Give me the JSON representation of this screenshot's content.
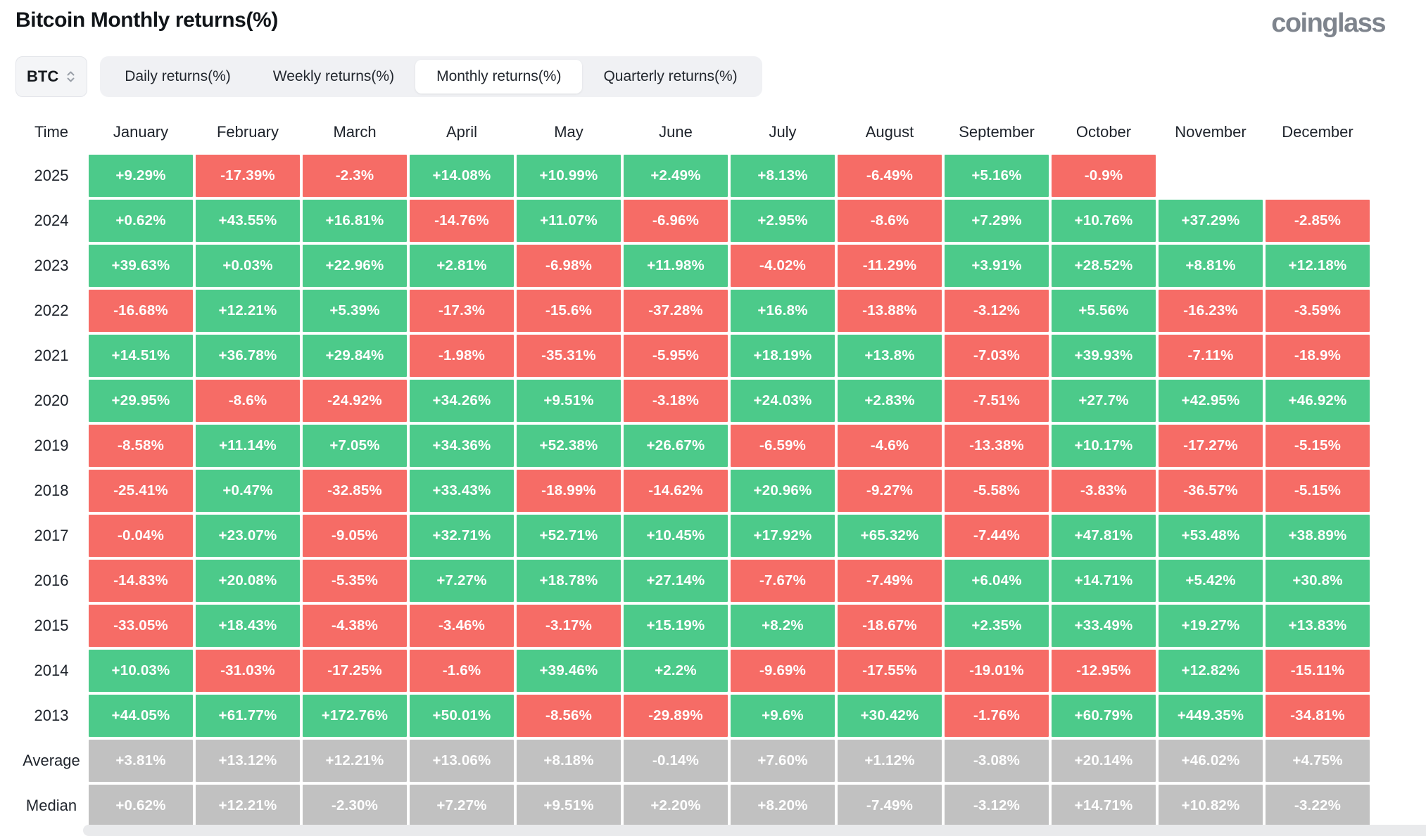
{
  "header": {
    "title": "Bitcoin Monthly returns(%)",
    "logo": "coinglass"
  },
  "toolbar": {
    "coin": "BTC",
    "tabs": [
      "Daily returns(%)",
      "Weekly returns(%)",
      "Monthly returns(%)",
      "Quarterly returns(%)"
    ],
    "active_tab": "Monthly returns(%)"
  },
  "colors": {
    "positive": "#4CCA8A",
    "negative": "#F66C66",
    "summary": "#C1C1C1"
  },
  "table": {
    "columns": [
      "Time",
      "January",
      "February",
      "March",
      "April",
      "May",
      "June",
      "July",
      "August",
      "September",
      "October",
      "November",
      "December"
    ],
    "rows": [
      {
        "label": "2025",
        "values": [
          "+9.29%",
          "-17.39%",
          "-2.3%",
          "+14.08%",
          "+10.99%",
          "+2.49%",
          "+8.13%",
          "-6.49%",
          "+5.16%",
          "-0.9%",
          "",
          ""
        ]
      },
      {
        "label": "2024",
        "values": [
          "+0.62%",
          "+43.55%",
          "+16.81%",
          "-14.76%",
          "+11.07%",
          "-6.96%",
          "+2.95%",
          "-8.6%",
          "+7.29%",
          "+10.76%",
          "+37.29%",
          "-2.85%"
        ]
      },
      {
        "label": "2023",
        "values": [
          "+39.63%",
          "+0.03%",
          "+22.96%",
          "+2.81%",
          "-6.98%",
          "+11.98%",
          "-4.02%",
          "-11.29%",
          "+3.91%",
          "+28.52%",
          "+8.81%",
          "+12.18%"
        ]
      },
      {
        "label": "2022",
        "values": [
          "-16.68%",
          "+12.21%",
          "+5.39%",
          "-17.3%",
          "-15.6%",
          "-37.28%",
          "+16.8%",
          "-13.88%",
          "-3.12%",
          "+5.56%",
          "-16.23%",
          "-3.59%"
        ]
      },
      {
        "label": "2021",
        "values": [
          "+14.51%",
          "+36.78%",
          "+29.84%",
          "-1.98%",
          "-35.31%",
          "-5.95%",
          "+18.19%",
          "+13.8%",
          "-7.03%",
          "+39.93%",
          "-7.11%",
          "-18.9%"
        ]
      },
      {
        "label": "2020",
        "values": [
          "+29.95%",
          "-8.6%",
          "-24.92%",
          "+34.26%",
          "+9.51%",
          "-3.18%",
          "+24.03%",
          "+2.83%",
          "-7.51%",
          "+27.7%",
          "+42.95%",
          "+46.92%"
        ]
      },
      {
        "label": "2019",
        "values": [
          "-8.58%",
          "+11.14%",
          "+7.05%",
          "+34.36%",
          "+52.38%",
          "+26.67%",
          "-6.59%",
          "-4.6%",
          "-13.38%",
          "+10.17%",
          "-17.27%",
          "-5.15%"
        ]
      },
      {
        "label": "2018",
        "values": [
          "-25.41%",
          "+0.47%",
          "-32.85%",
          "+33.43%",
          "-18.99%",
          "-14.62%",
          "+20.96%",
          "-9.27%",
          "-5.58%",
          "-3.83%",
          "-36.57%",
          "-5.15%"
        ]
      },
      {
        "label": "2017",
        "values": [
          "-0.04%",
          "+23.07%",
          "-9.05%",
          "+32.71%",
          "+52.71%",
          "+10.45%",
          "+17.92%",
          "+65.32%",
          "-7.44%",
          "+47.81%",
          "+53.48%",
          "+38.89%"
        ]
      },
      {
        "label": "2016",
        "values": [
          "-14.83%",
          "+20.08%",
          "-5.35%",
          "+7.27%",
          "+18.78%",
          "+27.14%",
          "-7.67%",
          "-7.49%",
          "+6.04%",
          "+14.71%",
          "+5.42%",
          "+30.8%"
        ]
      },
      {
        "label": "2015",
        "values": [
          "-33.05%",
          "+18.43%",
          "-4.38%",
          "-3.46%",
          "-3.17%",
          "+15.19%",
          "+8.2%",
          "-18.67%",
          "+2.35%",
          "+33.49%",
          "+19.27%",
          "+13.83%"
        ]
      },
      {
        "label": "2014",
        "values": [
          "+10.03%",
          "-31.03%",
          "-17.25%",
          "-1.6%",
          "+39.46%",
          "+2.2%",
          "-9.69%",
          "-17.55%",
          "-19.01%",
          "-12.95%",
          "+12.82%",
          "-15.11%"
        ]
      },
      {
        "label": "2013",
        "values": [
          "+44.05%",
          "+61.77%",
          "+172.76%",
          "+50.01%",
          "-8.56%",
          "-29.89%",
          "+9.6%",
          "+30.42%",
          "-1.76%",
          "+60.79%",
          "+449.35%",
          "-34.81%"
        ]
      },
      {
        "label": "Average",
        "summary": true,
        "values": [
          "+3.81%",
          "+13.12%",
          "+12.21%",
          "+13.06%",
          "+8.18%",
          "-0.14%",
          "+7.60%",
          "+1.12%",
          "-3.08%",
          "+20.14%",
          "+46.02%",
          "+4.75%"
        ]
      },
      {
        "label": "Median",
        "summary": true,
        "values": [
          "+0.62%",
          "+12.21%",
          "-2.30%",
          "+7.27%",
          "+9.51%",
          "+2.20%",
          "+8.20%",
          "-7.49%",
          "-3.12%",
          "+14.71%",
          "+10.82%",
          "-3.22%"
        ]
      }
    ]
  }
}
